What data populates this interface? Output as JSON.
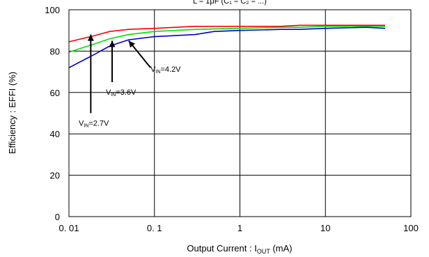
{
  "chart_data": {
    "type": "line",
    "title_partial": "L = 1μF (C₁ = C₂ = ...)",
    "xlabel_main": "Output Current : I",
    "xlabel_sub": "OUT",
    "xlabel_unit": " (mA)",
    "ylabel": "Efficiency : EFFI (%)",
    "x_scale": "log",
    "xlim": [
      0.01,
      100
    ],
    "ylim": [
      0,
      100
    ],
    "x_ticks": [
      {
        "value": 0.01,
        "label": "0. 01"
      },
      {
        "value": 0.1,
        "label": "0. 1"
      },
      {
        "value": 1,
        "label": "1"
      },
      {
        "value": 10,
        "label": "10"
      },
      {
        "value": 100,
        "label": "100"
      }
    ],
    "y_ticks": [
      {
        "value": 0,
        "label": "0"
      },
      {
        "value": 20,
        "label": "20"
      },
      {
        "value": 40,
        "label": "40"
      },
      {
        "value": 60,
        "label": "60"
      },
      {
        "value": 80,
        "label": "80"
      },
      {
        "value": 100,
        "label": "100"
      }
    ],
    "grid": true,
    "series": [
      {
        "name": "VIN=4.2V",
        "color": "#ff0000",
        "x": [
          0.01,
          0.02,
          0.03,
          0.05,
          0.1,
          0.3,
          1,
          3,
          5,
          10,
          30,
          50
        ],
        "y": [
          84.5,
          87.5,
          89.5,
          90.5,
          91,
          92,
          92,
          92,
          92.5,
          92.5,
          92.5,
          92.5
        ]
      },
      {
        "name": "VIN=3.6V",
        "color": "#00e000",
        "x": [
          0.01,
          0.02,
          0.03,
          0.05,
          0.1,
          0.3,
          1,
          3,
          5,
          10,
          30,
          50
        ],
        "y": [
          79.5,
          83.5,
          86,
          88,
          89.5,
          90.5,
          91,
          91.5,
          91.5,
          92,
          92,
          92
        ]
      },
      {
        "name": "VIN=2.7V",
        "color": "#0000cc",
        "x": [
          0.01,
          0.02,
          0.03,
          0.05,
          0.1,
          0.3,
          0.5,
          1,
          3,
          5,
          10,
          30,
          50
        ],
        "y": [
          72,
          78.5,
          82.5,
          85.5,
          87,
          88,
          89.5,
          90,
          90.5,
          90.5,
          91,
          91.5,
          91
        ]
      }
    ],
    "annotations": [
      {
        "main": "V",
        "sub": "IN",
        "value": "=4.2V",
        "tip": [
          0.05,
          85
        ],
        "tail": [
          0.09,
          72
        ],
        "label_at": [
          0.09,
          70
        ]
      },
      {
        "main": "V",
        "sub": "IN",
        "value": "=3.6V",
        "tip": [
          0.032,
          85
        ],
        "tail": [
          0.032,
          65
        ],
        "label_at": [
          0.027,
          59
        ]
      },
      {
        "main": "V",
        "sub": "IN",
        "value": "=2.7V",
        "tip": [
          0.018,
          88
        ],
        "tail": [
          0.018,
          50
        ],
        "label_at": [
          0.013,
          44
        ]
      }
    ]
  }
}
